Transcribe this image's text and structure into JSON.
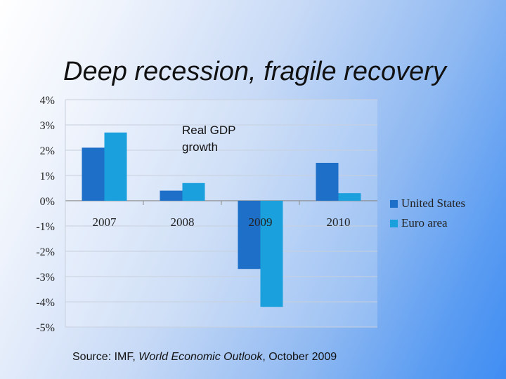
{
  "slide": {
    "title": "Deep recession, fragile recovery"
  },
  "source": {
    "prefix": "Source: IMF, ",
    "publication": "World Economic Outlook",
    "suffix": ", October 2009"
  },
  "chart_data": {
    "type": "bar",
    "title_lines": [
      "Real GDP",
      "growth"
    ],
    "categories": [
      "2007",
      "2008",
      "2009",
      "2010"
    ],
    "series": [
      {
        "name": "United States",
        "color": "#1e6fc8",
        "values": [
          2.1,
          0.4,
          -2.7,
          1.5
        ]
      },
      {
        "name": "Euro area",
        "color": "#1aa0dc",
        "values": [
          2.7,
          0.7,
          -4.2,
          0.3
        ]
      }
    ],
    "yticks": [
      4,
      3,
      2,
      1,
      0,
      -1,
      -2,
      -3,
      -4,
      -5
    ],
    "ytick_labels": [
      "4%",
      "3%",
      "2%",
      "1%",
      "0%",
      "-1%",
      "-2%",
      "-3%",
      "-4%",
      "-5%"
    ],
    "ylim": [
      -5,
      4
    ],
    "grid": true,
    "legend_position": "right",
    "gridline_color": "#c8d0dc",
    "axis_color": "#8a8a8a"
  }
}
